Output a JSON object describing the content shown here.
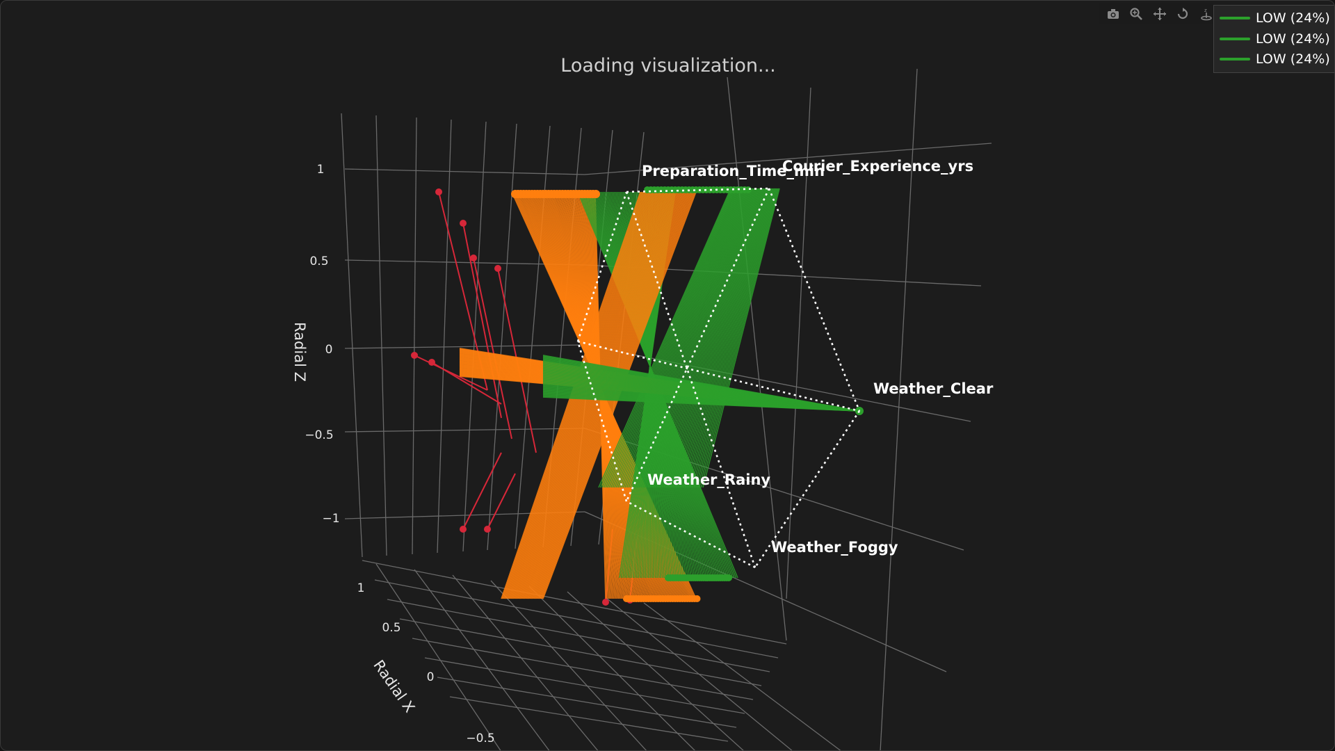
{
  "loading_text": "Loading visualization...",
  "modebar": {
    "icons": [
      "camera-icon",
      "zoom-icon",
      "pan-icon",
      "orbit-rotation-icon",
      "turntable-rotation-icon",
      "reset-camera-icon",
      "hover-toggle-icon",
      "plotly-logo-icon"
    ]
  },
  "legend": {
    "entries": [
      {
        "label": "LOW (24%)",
        "color": "#2ca02c"
      },
      {
        "label": "LOW (24%)",
        "color": "#2ca02c"
      },
      {
        "label": "LOW (24%)",
        "color": "#2ca02c"
      }
    ]
  },
  "chart_data": {
    "type": "scatter3d",
    "mode": "lines+markers",
    "axes": {
      "z": {
        "title": "Radial Z",
        "ticks": [
          "1",
          "0.5",
          "0",
          "−0.5",
          "−1"
        ]
      },
      "x": {
        "title": "Radial X",
        "ticks": [
          "1",
          "0.5",
          "0",
          "−0.5"
        ]
      }
    },
    "dimension_labels": [
      "Preparation_Time_min",
      "Courier_Experience_yrs",
      "Weather_Clear",
      "Weather_Rainy",
      "Weather_Foggy"
    ],
    "series_colors": {
      "orange": "#ff7f0e",
      "green": "#2ca02c",
      "red": "#d62739"
    },
    "background": "#1c1c1c",
    "grid": true
  }
}
